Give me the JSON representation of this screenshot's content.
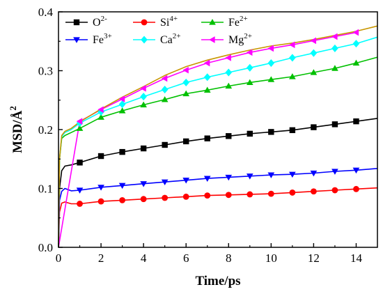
{
  "chart_data": {
    "type": "line",
    "xlabel": "Time/ps",
    "ylabel": "MSD/Å",
    "ylabel_sup": "2",
    "xlim": [
      0,
      15
    ],
    "ylim": [
      0,
      0.4
    ],
    "xticks": [
      "0",
      "2",
      "4",
      "6",
      "8",
      "10",
      "12",
      "14"
    ],
    "yticks": [
      "0.0",
      "0.1",
      "0.2",
      "0.3",
      "0.4"
    ],
    "legend_position": "top-left",
    "marker_x": [
      1,
      2,
      3,
      4,
      5,
      6,
      7,
      8,
      9,
      10,
      11,
      12,
      13,
      14
    ],
    "series": [
      {
        "name": "O",
        "sup": "2-",
        "color": "#000000",
        "marker": "square",
        "x": [
          0,
          0.05,
          0.15,
          0.3,
          0.6,
          1,
          2,
          3,
          4,
          5,
          6,
          7,
          8,
          9,
          10,
          11,
          12,
          13,
          14,
          15
        ],
        "y": [
          0.0,
          0.1,
          0.13,
          0.138,
          0.14,
          0.144,
          0.155,
          0.162,
          0.168,
          0.174,
          0.18,
          0.185,
          0.189,
          0.193,
          0.196,
          0.199,
          0.204,
          0.209,
          0.214,
          0.219
        ]
      },
      {
        "name": "Si",
        "sup": "4+",
        "color": "#ff0000",
        "marker": "circle",
        "x": [
          0,
          0.05,
          0.15,
          0.3,
          0.6,
          1,
          2,
          3,
          4,
          5,
          6,
          7,
          8,
          9,
          10,
          11,
          12,
          13,
          14,
          15
        ],
        "y": [
          0.0,
          0.06,
          0.075,
          0.077,
          0.074,
          0.074,
          0.078,
          0.08,
          0.082,
          0.084,
          0.086,
          0.088,
          0.089,
          0.09,
          0.091,
          0.093,
          0.095,
          0.097,
          0.099,
          0.101
        ]
      },
      {
        "name": "Fe",
        "sup": "2+",
        "color": "#00c000",
        "marker": "triangle-up",
        "x": [
          0,
          0.05,
          0.15,
          0.3,
          0.6,
          1,
          2,
          3,
          4,
          5,
          6,
          7,
          8,
          9,
          10,
          11,
          12,
          13,
          14,
          15
        ],
        "y": [
          0.0,
          0.15,
          0.185,
          0.19,
          0.195,
          0.202,
          0.221,
          0.232,
          0.242,
          0.251,
          0.261,
          0.267,
          0.274,
          0.28,
          0.285,
          0.29,
          0.297,
          0.304,
          0.313,
          0.323
        ]
      },
      {
        "name": "Fe",
        "sup": "3+",
        "color": "#0000ff",
        "marker": "triangle-down",
        "x": [
          0,
          0.05,
          0.15,
          0.3,
          0.6,
          1,
          2,
          3,
          4,
          5,
          6,
          7,
          8,
          9,
          10,
          11,
          12,
          13,
          14,
          15
        ],
        "y": [
          0.0,
          0.08,
          0.095,
          0.1,
          0.096,
          0.097,
          0.102,
          0.105,
          0.108,
          0.111,
          0.114,
          0.117,
          0.119,
          0.121,
          0.123,
          0.124,
          0.126,
          0.129,
          0.131,
          0.134
        ]
      },
      {
        "name": "Ca",
        "sup": "2+",
        "color": "#00ffff",
        "marker": "diamond",
        "x": [
          0,
          0.05,
          0.15,
          0.3,
          0.6,
          1,
          2,
          3,
          4,
          5,
          6,
          7,
          8,
          9,
          10,
          11,
          12,
          13,
          14,
          15
        ],
        "y": [
          0.0,
          0.15,
          0.188,
          0.195,
          0.2,
          0.211,
          0.23,
          0.243,
          0.256,
          0.268,
          0.28,
          0.289,
          0.297,
          0.305,
          0.313,
          0.322,
          0.33,
          0.338,
          0.346,
          0.357
        ]
      },
      {
        "name": "Mg",
        "sup": "2+",
        "color": "#ff00ff",
        "marker": "triangle-left",
        "x": [
          0,
          1,
          2,
          3,
          4,
          5,
          6,
          7,
          8,
          9,
          10,
          11,
          12,
          13,
          14
        ],
        "y": [
          0.0,
          0.214,
          0.234,
          0.252,
          0.27,
          0.287,
          0.301,
          0.313,
          0.322,
          0.331,
          0.338,
          0.344,
          0.351,
          0.358,
          0.365
        ]
      },
      {
        "name": "",
        "sup": "",
        "color": "#c89600",
        "marker": "none",
        "x": [
          0,
          0.05,
          0.15,
          0.3,
          0.6,
          1,
          2,
          3,
          4,
          5,
          6,
          7,
          8,
          9,
          10,
          11,
          12,
          13,
          14,
          15
        ],
        "y": [
          0.0,
          0.15,
          0.19,
          0.197,
          0.202,
          0.213,
          0.235,
          0.255,
          0.273,
          0.292,
          0.307,
          0.318,
          0.327,
          0.335,
          0.342,
          0.347,
          0.353,
          0.36,
          0.367,
          0.376
        ]
      }
    ],
    "legend": [
      {
        "series": 0,
        "name": "O",
        "sup": "2-"
      },
      {
        "series": 1,
        "name": "Si",
        "sup": "4+"
      },
      {
        "series": 2,
        "name": "Fe",
        "sup": "2+"
      },
      {
        "series": 3,
        "name": "Fe",
        "sup": "3+"
      },
      {
        "series": 4,
        "name": "Ca",
        "sup": "2+"
      },
      {
        "series": 5,
        "name": "Mg",
        "sup": "2+"
      }
    ]
  }
}
